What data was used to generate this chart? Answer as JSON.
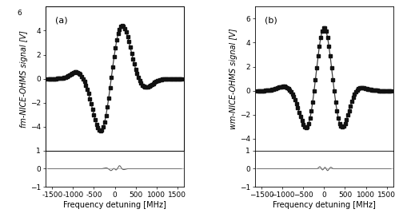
{
  "xlim": [
    -1650,
    1650
  ],
  "ylim_main_a": [
    -6,
    6
  ],
  "ylim_main_b": [
    -5,
    7
  ],
  "ylim_residual": [
    -1,
    1
  ],
  "xlabel": "Frequency detuning [MHz]",
  "ylabel_a": "fm-NICE-OHMS signal [V]",
  "ylabel_b": "wm-NICE-OHMS signal [V]",
  "label_a": "(a)",
  "label_b": "(b)",
  "line_color": "#404040",
  "marker_color": "#111111",
  "residual_color": "#555555",
  "n_markers": 100,
  "marker_size": 2.2,
  "linewidth": 0.9,
  "tick_labelsize": 6.5,
  "axis_labelsize": 7,
  "panel_labelsize": 8
}
